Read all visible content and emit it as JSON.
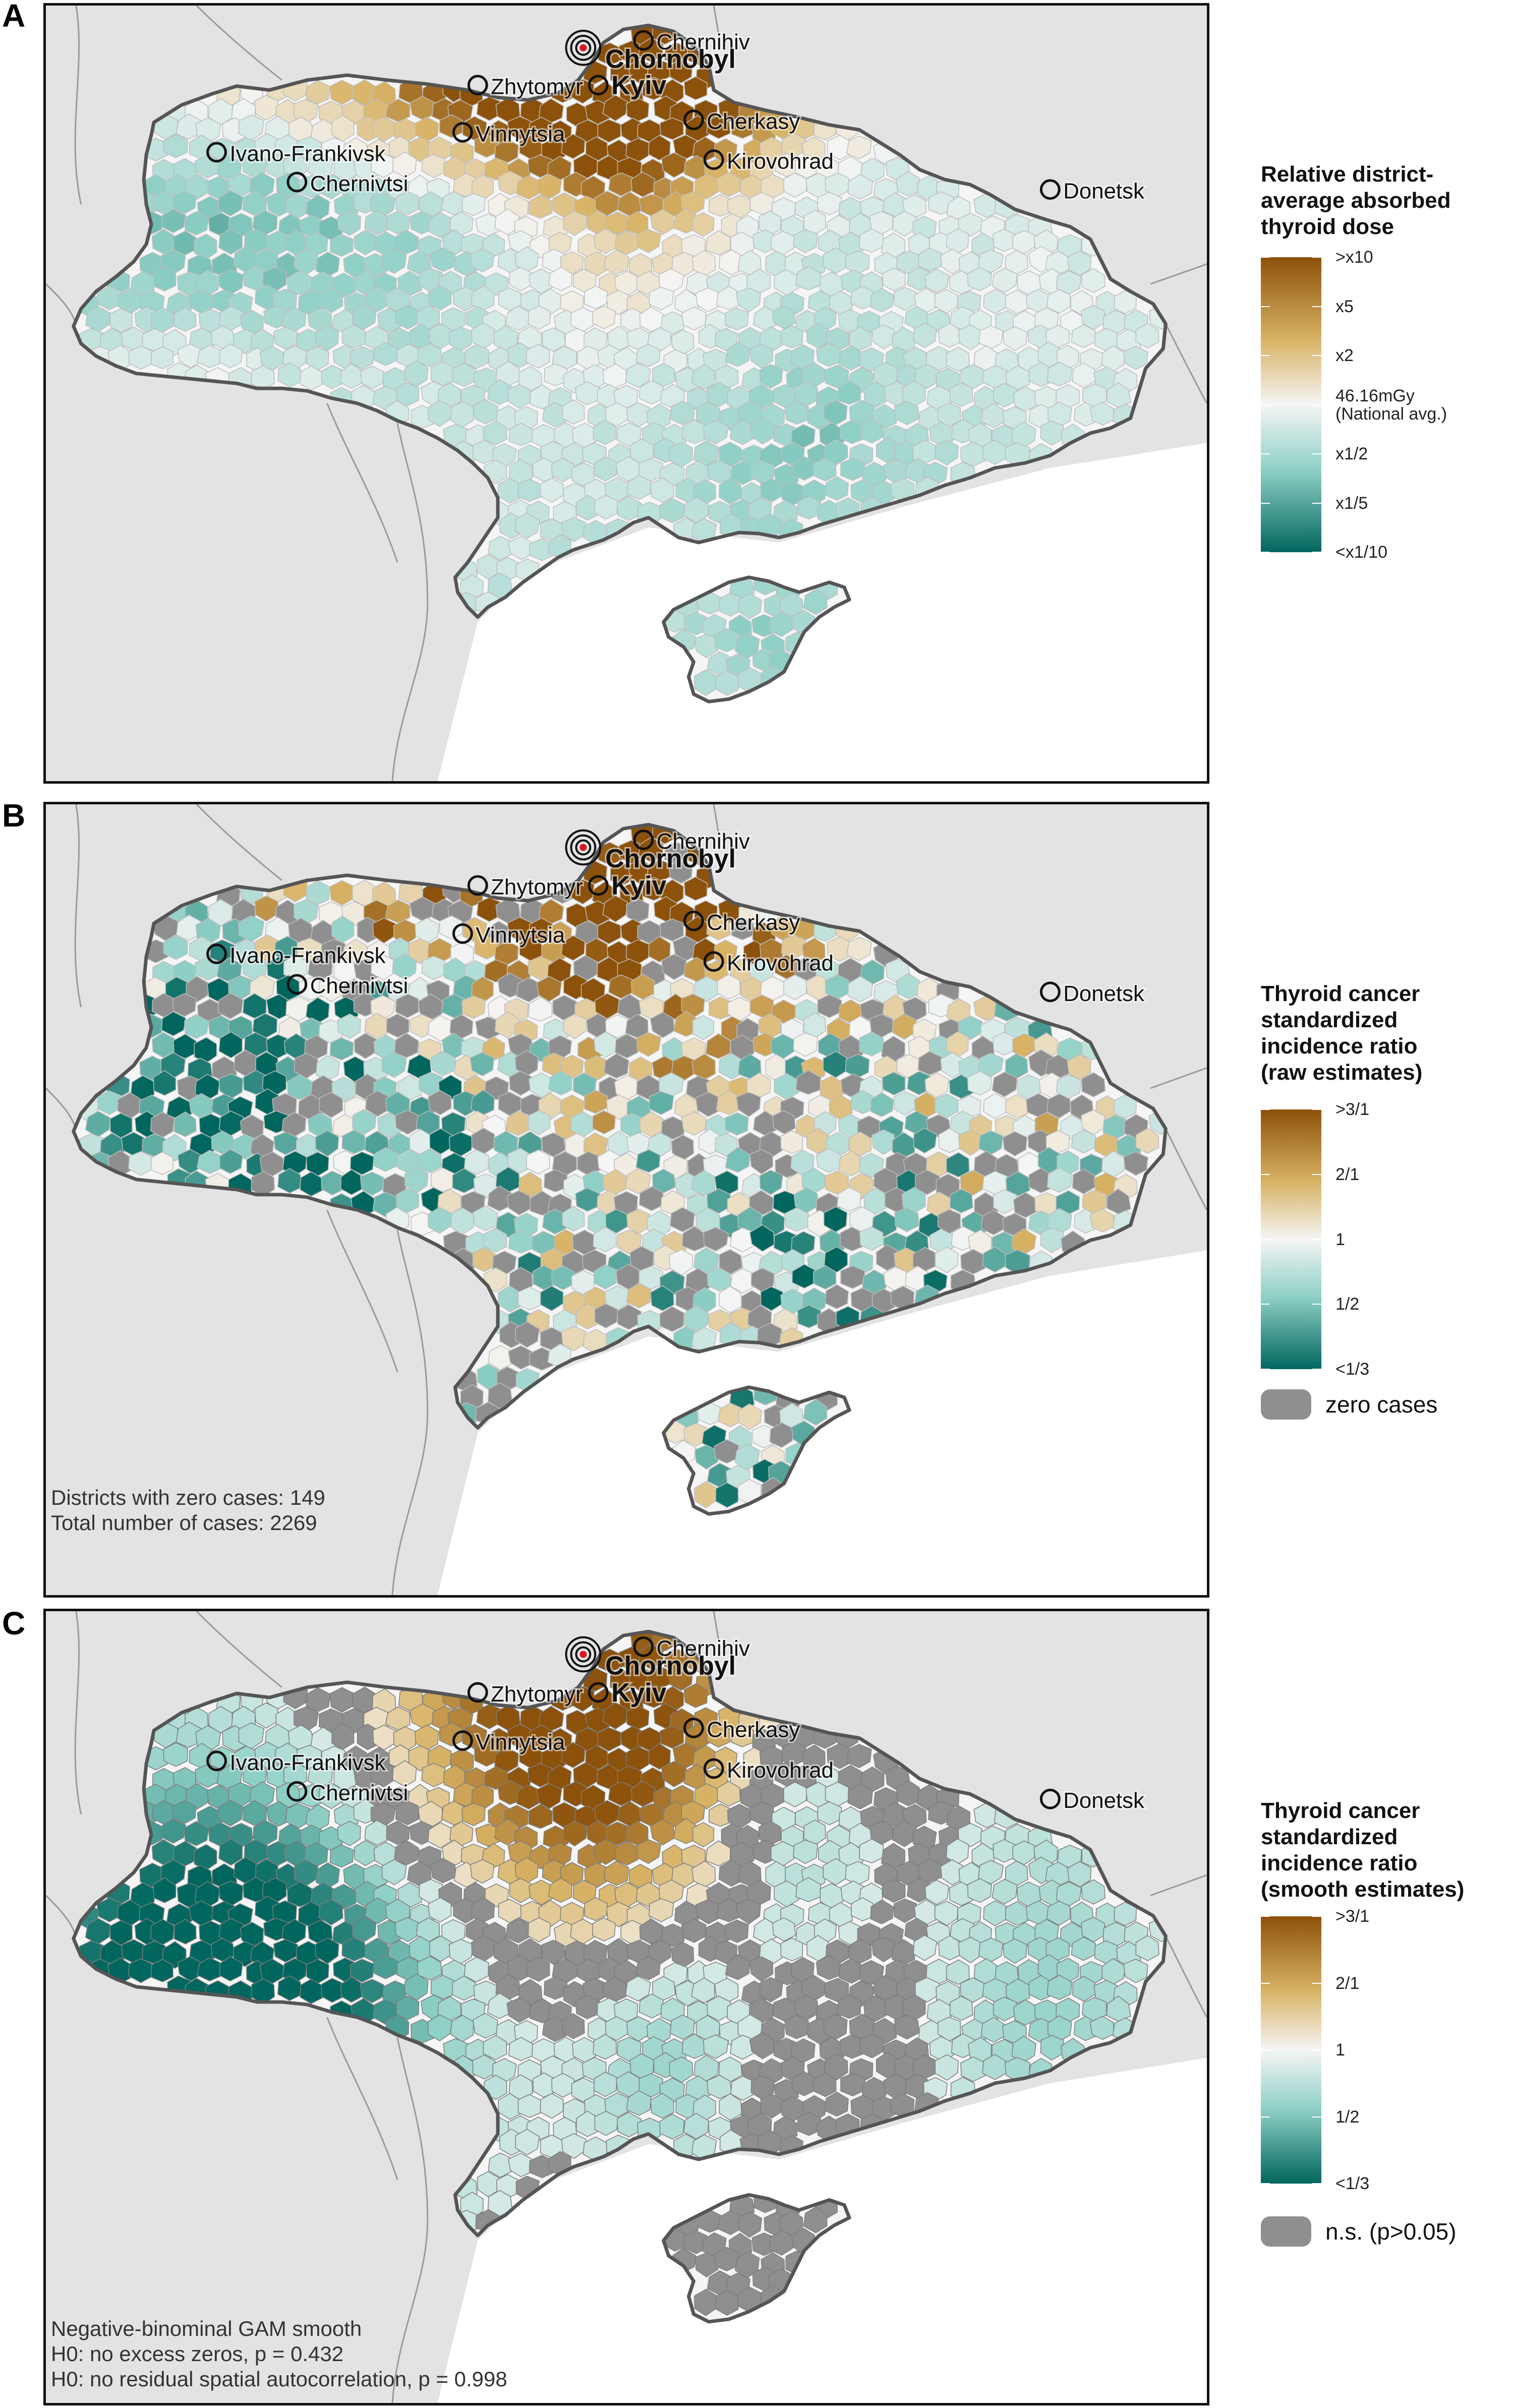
{
  "panels": [
    {
      "letter": "A",
      "legend": {
        "title_lines": [
          "Relative district-",
          "average absorbed",
          "thyroid dose"
        ],
        "ticks": [
          ">x10",
          "x5",
          "x2",
          "46.16mGy\n(National avg.)",
          "x1/2",
          "x1/5",
          "<x1/10"
        ],
        "swatch_label": ""
      },
      "notes": [],
      "mode": "dose"
    },
    {
      "letter": "B",
      "legend": {
        "title_lines": [
          "Thyroid cancer",
          "standardized",
          "incidence ratio",
          "(raw estimates)"
        ],
        "ticks": [
          ">3/1",
          "2/1",
          "1",
          "1/2",
          "<1/3"
        ],
        "swatch_label": "zero cases"
      },
      "notes": [
        "Districts with zero cases: 149",
        "Total number of cases: 2269"
      ],
      "mode": "raw"
    },
    {
      "letter": "C",
      "legend": {
        "title_lines": [
          "Thyroid cancer",
          "standardized",
          "incidence ratio",
          "(smooth estimates)"
        ],
        "ticks": [
          ">3/1",
          "2/1",
          "1",
          "1/2",
          "<1/3"
        ],
        "swatch_label": "n.s. (p>0.05)"
      },
      "notes": [
        "Negative-binominal GAM smooth",
        "H0: no excess zeros, p = 0.432",
        "H0: no residual spatial autocorrelation, p = 0.998"
      ],
      "mode": "smooth"
    }
  ],
  "cities": [
    {
      "name": "Chernihiv",
      "major": false
    },
    {
      "name": "Chornobyl",
      "major": true
    },
    {
      "name": "Kyiv",
      "major": true
    },
    {
      "name": "Zhytomyr",
      "major": false
    },
    {
      "name": "Cherkasy",
      "major": false
    },
    {
      "name": "Vinnytsia",
      "major": false
    },
    {
      "name": "Ivano-Frankivsk",
      "major": false
    },
    {
      "name": "Kirovohrad",
      "major": false
    },
    {
      "name": "Chernivtsi",
      "major": false
    },
    {
      "name": "Donetsk",
      "major": false
    }
  ],
  "colors": {
    "high": "#8c510a",
    "mid_high": "#d8b365",
    "neutral": "#f5f5f5",
    "mid_low": "#8fd0c6",
    "low": "#01665e",
    "zero_or_ns": "#8f8f8f",
    "land_bg": "#e3e3e3",
    "border": "#555555"
  }
}
